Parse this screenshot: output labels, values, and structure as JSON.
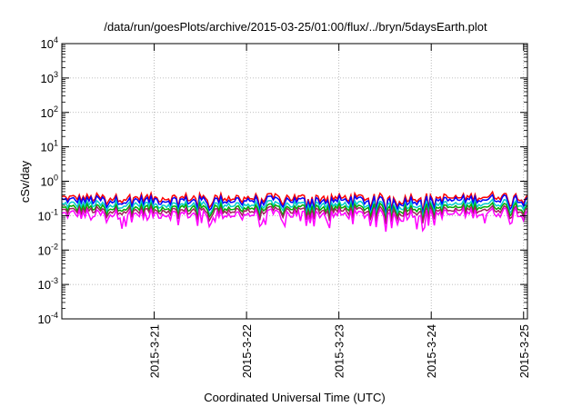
{
  "chart_data": {
    "type": "line",
    "title": "/data/run/goesPlots/archive/2015-03-25/01:00/flux/../bryn/5daysEarth.plot",
    "xlabel": "Coordinated Universal Time (UTC)",
    "ylabel": "cSv/day",
    "yscale": "log",
    "ylim": [
      0.0001,
      10000
    ],
    "xlim": [
      "2015-03-20T00:00",
      "2015-03-25T01:00"
    ],
    "grid": true,
    "legend": "none",
    "y_ticks": [
      {
        "base": "10",
        "exp": "-4"
      },
      {
        "base": "10",
        "exp": "-3"
      },
      {
        "base": "10",
        "exp": "-2"
      },
      {
        "base": "10",
        "exp": "-1"
      },
      {
        "base": "10",
        "exp": "0"
      },
      {
        "base": "10",
        "exp": "1"
      },
      {
        "base": "10",
        "exp": "2"
      },
      {
        "base": "10",
        "exp": "3"
      },
      {
        "base": "10",
        "exp": "4"
      }
    ],
    "x_ticks": [
      {
        "label": "2015-3-21",
        "date": "2015-03-21"
      },
      {
        "label": "2015-3-22",
        "date": "2015-03-22"
      },
      {
        "label": "2015-3-23",
        "date": "2015-03-23"
      },
      {
        "label": "2015-3-24",
        "date": "2015-03-24"
      },
      {
        "label": "2015-3-25",
        "date": "2015-03-25"
      }
    ],
    "series": [
      {
        "color": "#ff0000",
        "level": 0.33,
        "jitter": 0.22
      },
      {
        "color": "#0000ff",
        "level": 0.28,
        "jitter": 0.22
      },
      {
        "color": "#00cccc",
        "level": 0.21,
        "jitter": 0.2
      },
      {
        "color": "#00aa00",
        "level": 0.17,
        "jitter": 0.2
      },
      {
        "color": "#a02060",
        "level": 0.14,
        "jitter": 0.2
      },
      {
        "color": "#ff00ff",
        "level": 0.11,
        "jitter": 0.26
      }
    ]
  }
}
